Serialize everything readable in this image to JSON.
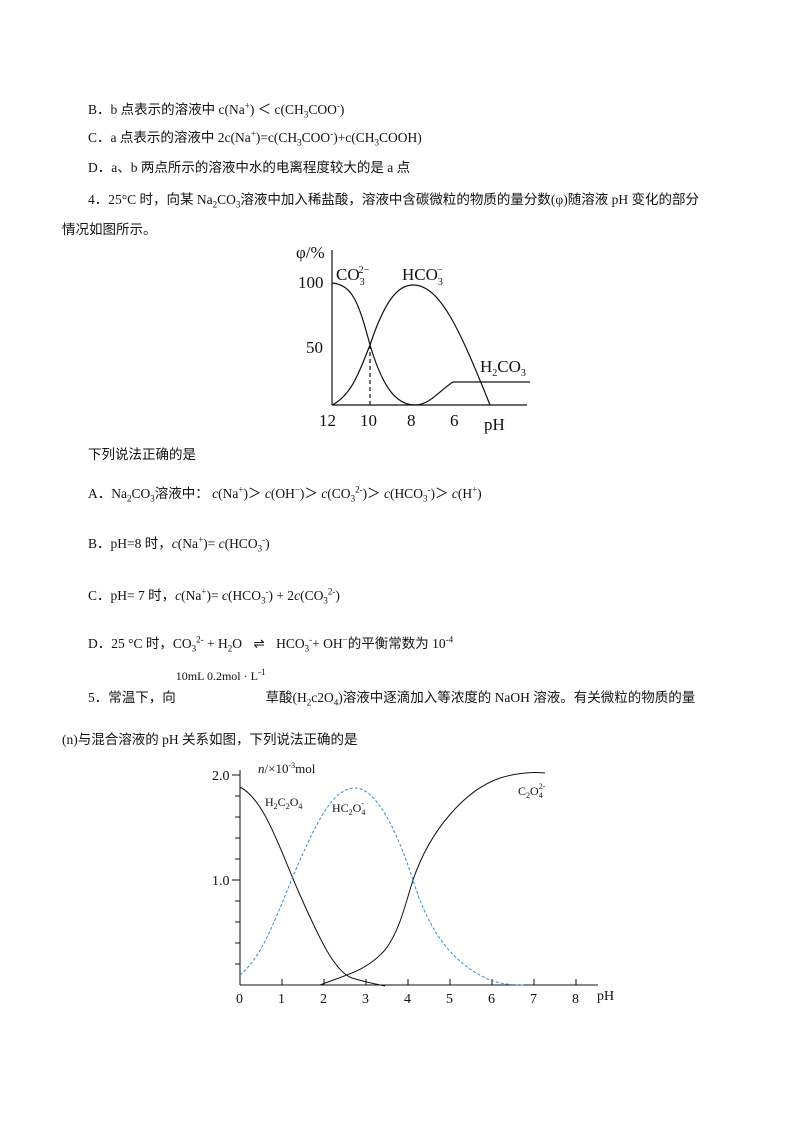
{
  "q3_options": {
    "B": [
      "B．b 点表示的溶液中 c(Na",
      "+",
      ") ＜ c(CH",
      "3",
      "COO",
      "-",
      ")"
    ],
    "C": [
      "C．a 点表示的溶液中 2c(Na",
      "+",
      ")=c(CH",
      "3",
      "COO",
      "-",
      ")+c(CH",
      "3",
      "COOH)"
    ],
    "D": [
      "D．a、b 两点所示的溶液中水的电离程度较大的是 a 点"
    ]
  },
  "q4": {
    "stem": [
      "4．25°C 时，向某 Na",
      "2",
      "CO",
      "3",
      "溶液中加入稀盐酸，溶液中含碳微粒的物质的量分数(φ)随溶液 pH 变化的部分",
      "情况如图所示。"
    ],
    "figure": {
      "y_label": "φ/%",
      "x_label": "pH",
      "yticks": [
        100,
        50
      ],
      "xticks": [
        12,
        10,
        8,
        6
      ],
      "species": [
        [
          "CO",
          "3",
          "2−"
        ],
        [
          "HCO",
          "3",
          "−"
        ],
        [
          "H",
          "2",
          "CO",
          "3"
        ]
      ]
    },
    "prompt": "下列说法正确的是",
    "A": [
      "A．Na",
      "2",
      "CO",
      "3",
      "溶液中：",
      "c",
      "(Na",
      "+",
      ")＞",
      "c",
      "(OH",
      "−",
      ")＞",
      "c",
      "(",
      "CO",
      "3",
      "2-",
      ")＞",
      "c",
      "(",
      "HCO",
      "3",
      "-",
      ")＞",
      "c",
      "(H",
      "+",
      ")"
    ],
    "B": [
      "B．pH=8 时，",
      "c",
      "(Na",
      "+",
      ")=",
      "c",
      "(",
      "HCO",
      "3",
      "-",
      ")"
    ],
    "C": [
      "C．pH= 7 时，",
      "c",
      "(Na",
      "+",
      ")=",
      "c",
      "(",
      "HCO",
      "3",
      "-",
      ") + 2",
      "c",
      "(",
      "CO",
      "3",
      "2-",
      ")"
    ],
    "D": [
      "D．25 °C 时，",
      "CO",
      "3",
      "2-",
      " + H",
      "2",
      "O",
      "⇌",
      "HCO",
      "3",
      "-",
      "+ OH",
      "−",
      "的平衡常数为 10",
      "-4"
    ]
  },
  "q5": {
    "stem": [
      "5．常温下，向",
      "10mL 0.2mol · L",
      "-1",
      "草酸(H",
      "2",
      "c2O",
      "4",
      ")溶液中逐滴加入等浓度的 NaOH 溶液。有关微粒的物质的量",
      "(n)与混合溶液的 pH 关系如图，下列说法正确的是"
    ],
    "figure": {
      "y_label": [
        "n",
        "/×10",
        "-3",
        "mol"
      ],
      "x_label": "pH",
      "yticks": [
        "2.0",
        "1.0"
      ],
      "xticks": [
        0,
        1,
        2,
        3,
        4,
        5,
        6,
        7,
        8
      ],
      "species": [
        [
          "H",
          "2",
          "C",
          "2",
          "O",
          "4"
        ],
        [
          "HC",
          "2",
          "O",
          "4",
          "-"
        ],
        [
          "C",
          "2",
          "O",
          "4",
          "2-"
        ]
      ]
    }
  }
}
